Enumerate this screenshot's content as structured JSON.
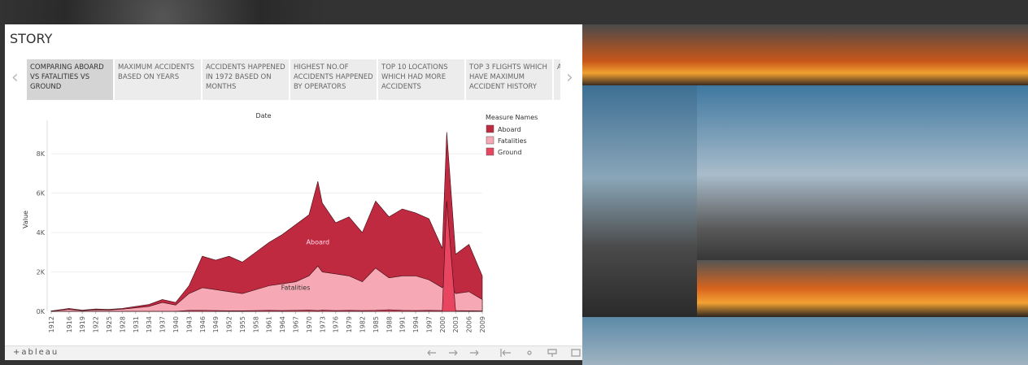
{
  "header": {
    "title": "STORY"
  },
  "tabs": [
    "COMPARING ABOARD VS FATALITIES VS GROUND",
    "MAXIMUM ACCIDENTS BASED ON YEARS",
    "ACCIDENTS HAPPENED IN 1972 BASED ON MONTHS",
    "HIGHEST NO.OF ACCIDENTS HAPPENED BY OPERATORS",
    "TOP 10 LOCATIONS WHICH HAD MORE ACCIDENTS",
    "TOP 3 FLIGHTS WHICH HAVE MAXIMUM ACCIDENT HISTORY",
    "AC RE"
  ],
  "footer": {
    "logo": "+ableau"
  },
  "chart_data": {
    "type": "area",
    "title": "Date",
    "y_label": "Value",
    "legend_title": "Measure Names",
    "x": [
      1912,
      1916,
      1919,
      1922,
      1925,
      1928,
      1931,
      1934,
      1937,
      1940,
      1943,
      1946,
      1949,
      1952,
      1955,
      1958,
      1961,
      1964,
      1967,
      1970,
      1972,
      1973,
      1976,
      1979,
      1982,
      1985,
      1988,
      1991,
      1994,
      1997,
      2000,
      2001,
      2003,
      2006,
      2009
    ],
    "xlim": [
      1912,
      2009
    ],
    "xticks": [
      1912,
      1916,
      1919,
      1922,
      1925,
      1928,
      1931,
      1934,
      1937,
      1940,
      1943,
      1946,
      1949,
      1952,
      1955,
      1958,
      1961,
      1964,
      1967,
      1970,
      1973,
      1976,
      1979,
      1982,
      1985,
      1988,
      1991,
      1994,
      1997,
      2000,
      2003,
      2006,
      2009
    ],
    "ylim": [
      0,
      9700
    ],
    "yticks": [
      {
        "value": 0,
        "label": "0K"
      },
      {
        "value": 2000,
        "label": "2K"
      },
      {
        "value": 4000,
        "label": "4K"
      },
      {
        "value": 6000,
        "label": "6K"
      },
      {
        "value": 8000,
        "label": "8K"
      }
    ],
    "grid": true,
    "series": [
      {
        "name": "Aboard",
        "color": "#bf2a40",
        "values": [
          20,
          150,
          60,
          120,
          100,
          150,
          250,
          350,
          600,
          450,
          1300,
          2800,
          2600,
          2800,
          2500,
          3000,
          3500,
          3900,
          4400,
          4900,
          6600,
          5500,
          4500,
          4800,
          4000,
          5600,
          4800,
          5200,
          5000,
          4700,
          3200,
          9100,
          2900,
          3400,
          1800
        ]
      },
      {
        "name": "Fatalities",
        "color": "#f6a9b4",
        "values": [
          15,
          100,
          40,
          80,
          70,
          110,
          180,
          250,
          450,
          320,
          900,
          1200,
          1100,
          1000,
          900,
          1100,
          1300,
          1400,
          1500,
          1800,
          2300,
          2000,
          1900,
          1800,
          1500,
          2200,
          1700,
          1800,
          1800,
          1600,
          1200,
          1600,
          900,
          1000,
          600
        ]
      },
      {
        "name": "Ground",
        "color": "#e84560",
        "values": [
          0,
          0,
          0,
          0,
          0,
          0,
          0,
          0,
          0,
          0,
          50,
          50,
          40,
          30,
          30,
          40,
          50,
          40,
          50,
          60,
          40,
          60,
          40,
          50,
          40,
          50,
          80,
          50,
          40,
          50,
          40,
          5600,
          40,
          30,
          20
        ]
      }
    ],
    "annotations": [
      {
        "text": "Aboard",
        "x": 1972,
        "y": 3400
      },
      {
        "text": "Fatalities",
        "x": 1967,
        "y": 1100
      }
    ]
  }
}
